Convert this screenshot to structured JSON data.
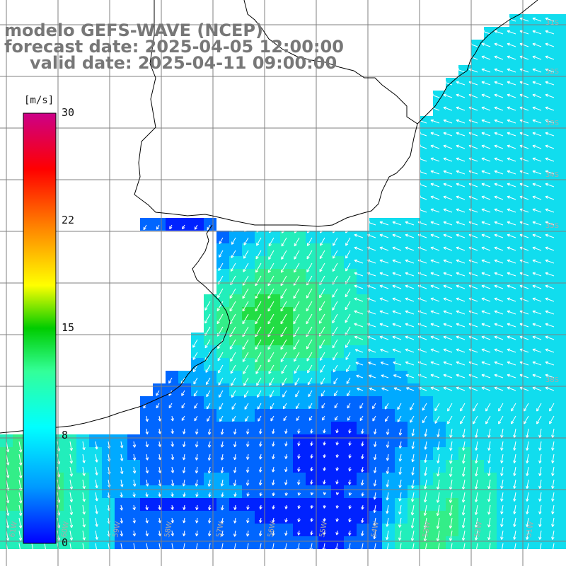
{
  "title": {
    "line1": "modelo GEFS-WAVE (NCEP)",
    "line2": "forecast date: 2025-04-05 12:00:00",
    "line3": "valid date: 2025-04-11 09:00:00"
  },
  "colorbar": {
    "unit": "[m/s]",
    "ticks": [
      "30",
      "22",
      "15",
      "8",
      "0"
    ],
    "min": 0,
    "max": 30
  },
  "map": {
    "lat_labels": [
      "31S",
      "32S",
      "33S",
      "34S",
      "35S",
      "38S"
    ],
    "lon_labels": [
      "61W",
      "60W",
      "59W",
      "58W",
      "57W",
      "56W",
      "55W",
      "54W",
      "53W",
      "52W",
      "51W"
    ],
    "colors": {
      "deep_blue": "#0033ff",
      "cyan": "#22d6f0",
      "green": "#33dd66",
      "land": "#ffffff",
      "grid": "#808080",
      "arrows": "#ffffff"
    }
  }
}
